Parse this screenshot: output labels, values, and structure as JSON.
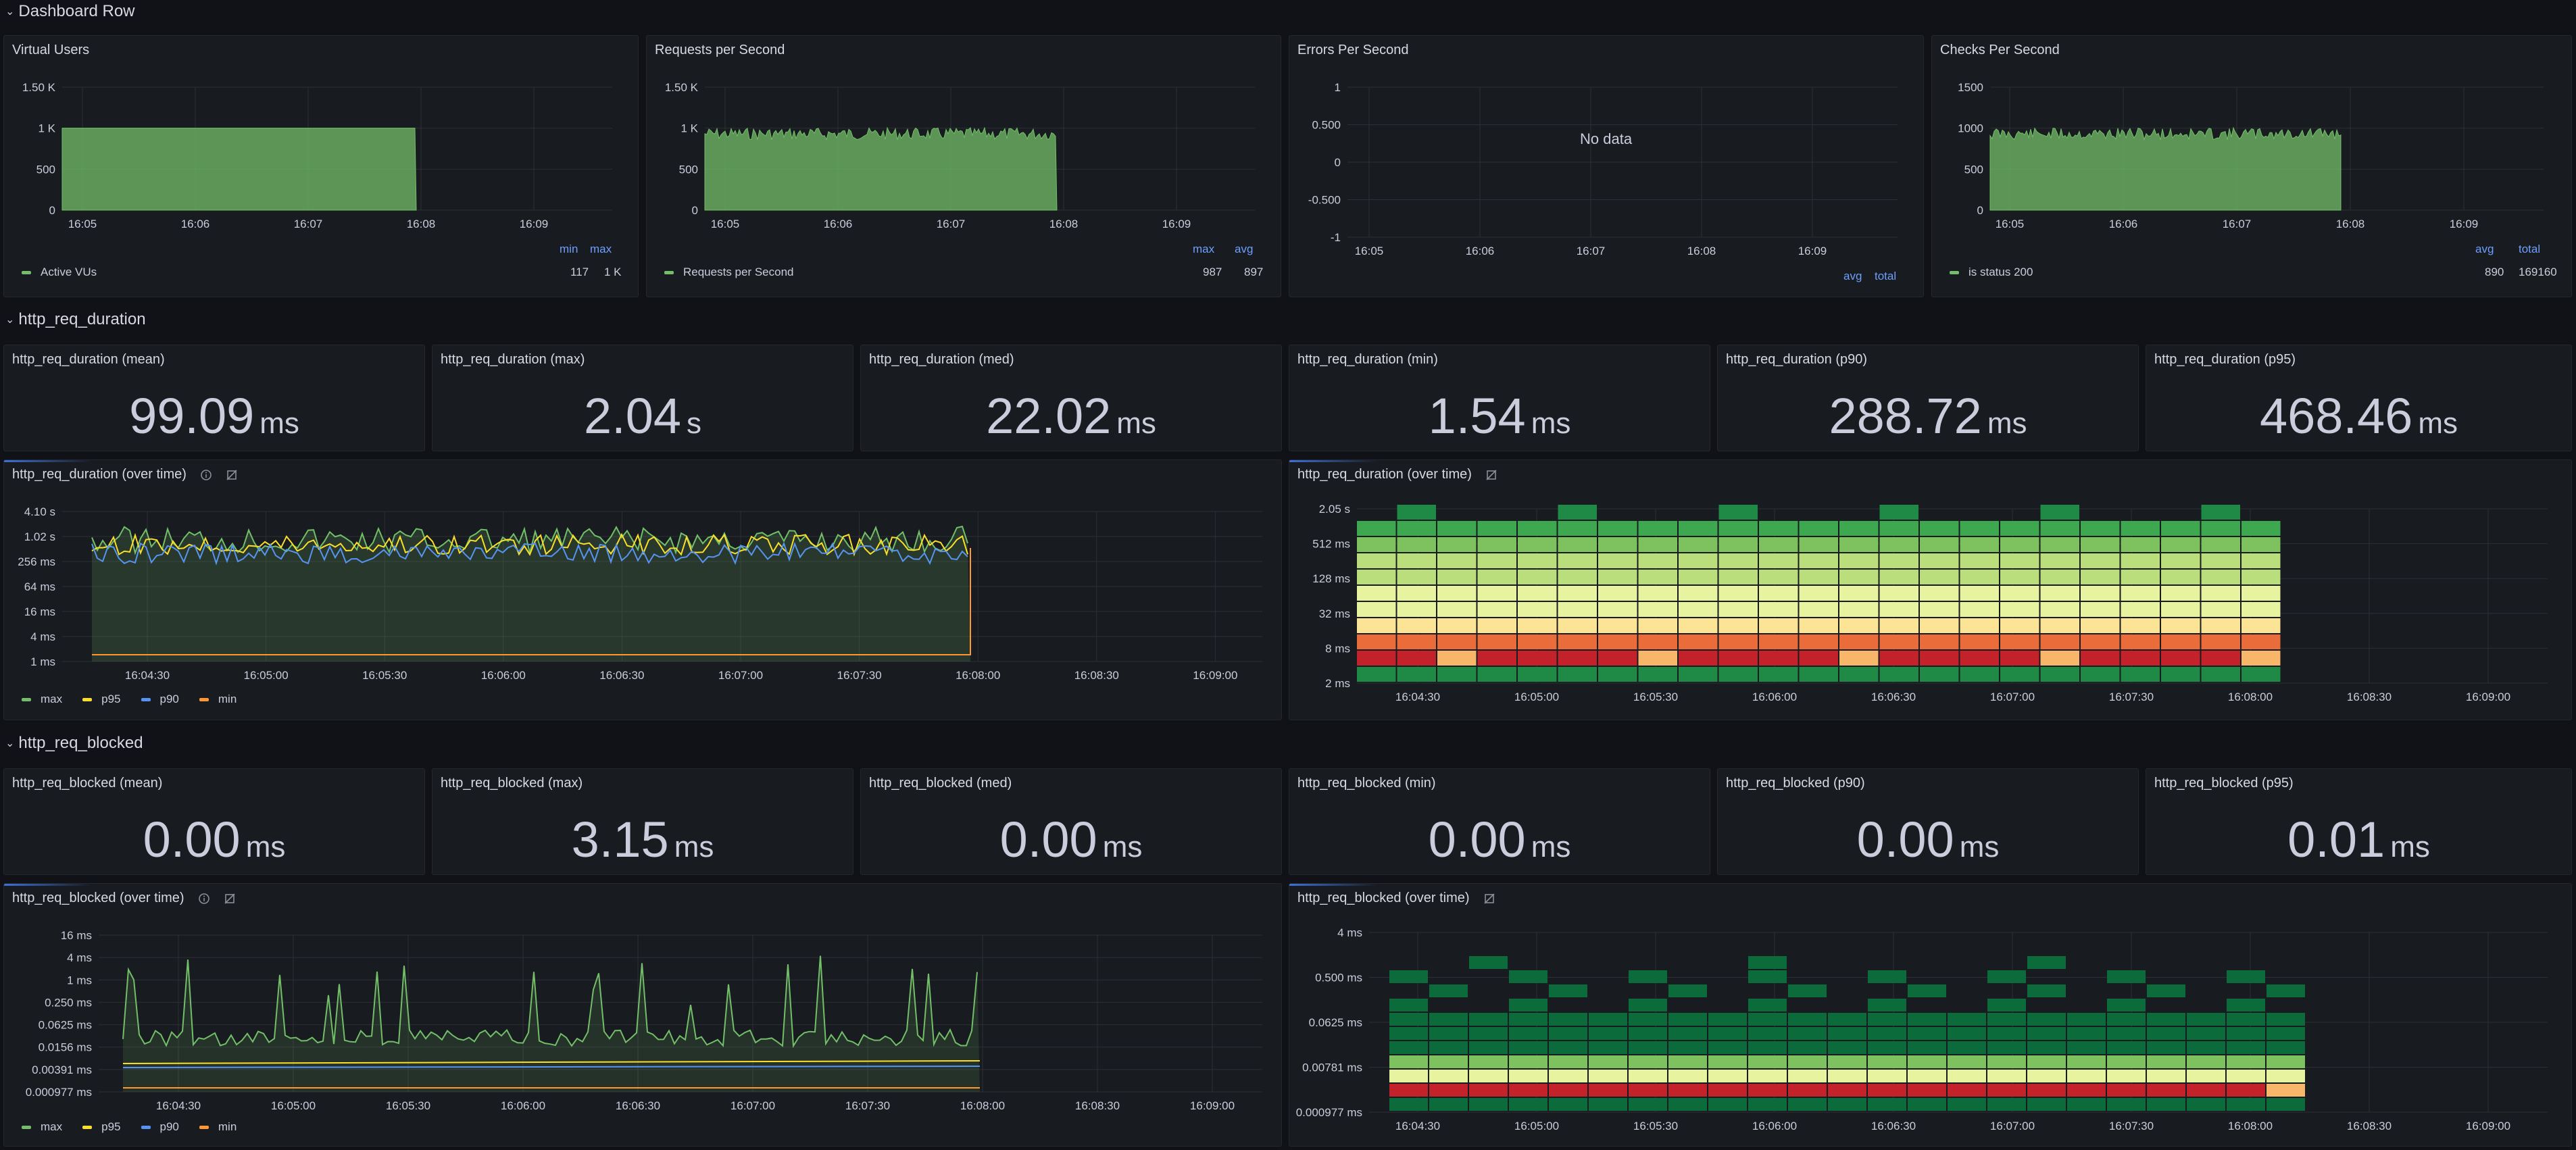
{
  "rows": {
    "dashboard": "Dashboard Row",
    "duration": "http_req_duration",
    "blocked": "http_req_blocked"
  },
  "panels": {
    "vus": {
      "title": "Virtual Users",
      "yticks": [
        "1.50 K",
        "1 K",
        "500",
        "0"
      ],
      "xticks": [
        "16:05",
        "16:06",
        "16:07",
        "16:08",
        "16:09"
      ],
      "legend_headers": [
        "min",
        "max"
      ],
      "series_name": "Active VUs",
      "series_color": "#73bf69",
      "values": [
        "117",
        "1 K"
      ]
    },
    "rps": {
      "title": "Requests per Second",
      "yticks": [
        "1.50 K",
        "1 K",
        "500",
        "0"
      ],
      "xticks": [
        "16:05",
        "16:06",
        "16:07",
        "16:08",
        "16:09"
      ],
      "legend_headers": [
        "max",
        "avg"
      ],
      "series_name": "Requests per Second",
      "series_color": "#73bf69",
      "values": [
        "987",
        "897"
      ]
    },
    "eps": {
      "title": "Errors Per Second",
      "yticks": [
        "1",
        "0.500",
        "0",
        "-0.500",
        "-1"
      ],
      "xticks": [
        "16:05",
        "16:06",
        "16:07",
        "16:08",
        "16:09"
      ],
      "nodata": "No data",
      "legend_headers": [
        "avg",
        "total"
      ]
    },
    "cps": {
      "title": "Checks Per Second",
      "yticks": [
        "1500",
        "1000",
        "500",
        "0"
      ],
      "xticks": [
        "16:05",
        "16:06",
        "16:07",
        "16:08",
        "16:09"
      ],
      "legend_headers": [
        "avg",
        "total"
      ],
      "series_name": "is status 200",
      "series_color": "#73bf69",
      "values": [
        "890",
        "169160"
      ]
    },
    "dur_ts": {
      "title": "http_req_duration (over time)",
      "yticks": [
        "4.10 s",
        "1.02 s",
        "256 ms",
        "64 ms",
        "16 ms",
        "4 ms",
        "1 ms"
      ],
      "xticks": [
        "16:04:30",
        "16:05:00",
        "16:05:30",
        "16:06:00",
        "16:06:30",
        "16:07:00",
        "16:07:30",
        "16:08:00",
        "16:08:30",
        "16:09:00"
      ]
    },
    "dur_hm": {
      "title": "http_req_duration (over time)",
      "yticks": [
        "2.05 s",
        "512 ms",
        "128 ms",
        "32 ms",
        "8 ms",
        "2 ms"
      ],
      "xticks": [
        "16:04:30",
        "16:05:00",
        "16:05:30",
        "16:06:00",
        "16:06:30",
        "16:07:00",
        "16:07:30",
        "16:08:00",
        "16:08:30",
        "16:09:00"
      ]
    },
    "blk_ts": {
      "title": "http_req_blocked (over time)",
      "yticks": [
        "16 ms",
        "4 ms",
        "1 ms",
        "0.250 ms",
        "0.0625 ms",
        "0.0156 ms",
        "0.00391 ms",
        "0.000977 ms"
      ],
      "xticks": [
        "16:04:30",
        "16:05:00",
        "16:05:30",
        "16:06:00",
        "16:06:30",
        "16:07:00",
        "16:07:30",
        "16:08:00",
        "16:08:30",
        "16:09:00"
      ]
    },
    "blk_hm": {
      "title": "http_req_blocked (over time)",
      "yticks": [
        "4 ms",
        "0.500 ms",
        "0.0625 ms",
        "0.00781 ms",
        "0.000977 ms"
      ],
      "xticks": [
        "16:04:30",
        "16:05:00",
        "16:05:30",
        "16:06:00",
        "16:06:30",
        "16:07:00",
        "16:07:30",
        "16:08:00",
        "16:08:30",
        "16:09:00"
      ]
    }
  },
  "legend_multi": [
    {
      "name": "max",
      "color": "#73bf69"
    },
    {
      "name": "p95",
      "color": "#fade2a"
    },
    {
      "name": "p90",
      "color": "#5794f2"
    },
    {
      "name": "min",
      "color": "#ff9830"
    }
  ],
  "duration_stats": [
    {
      "title": "http_req_duration (mean)",
      "value": "99.09",
      "unit": "ms"
    },
    {
      "title": "http_req_duration (max)",
      "value": "2.04",
      "unit": "s"
    },
    {
      "title": "http_req_duration (med)",
      "value": "22.02",
      "unit": "ms"
    },
    {
      "title": "http_req_duration (min)",
      "value": "1.54",
      "unit": "ms"
    },
    {
      "title": "http_req_duration (p90)",
      "value": "288.72",
      "unit": "ms"
    },
    {
      "title": "http_req_duration (p95)",
      "value": "468.46",
      "unit": "ms"
    }
  ],
  "blocked_stats": [
    {
      "title": "http_req_blocked (mean)",
      "value": "0.00",
      "unit": "ms"
    },
    {
      "title": "http_req_blocked (max)",
      "value": "3.15",
      "unit": "ms"
    },
    {
      "title": "http_req_blocked (med)",
      "value": "0.00",
      "unit": "ms"
    },
    {
      "title": "http_req_blocked (min)",
      "value": "0.00",
      "unit": "ms"
    },
    {
      "title": "http_req_blocked (p90)",
      "value": "0.00",
      "unit": "ms"
    },
    {
      "title": "http_req_blocked (p95)",
      "value": "0.01",
      "unit": "ms"
    }
  ],
  "colors": {
    "green": "#73bf69",
    "grid": "#2c2f36",
    "heat": [
      "#0b6b3a",
      "#1e8a46",
      "#3ea851",
      "#7ec25f",
      "#b9de7b",
      "#e8f3a0",
      "#fbe495",
      "#f7b66a",
      "#ea6c3a",
      "#c4222a"
    ]
  }
}
